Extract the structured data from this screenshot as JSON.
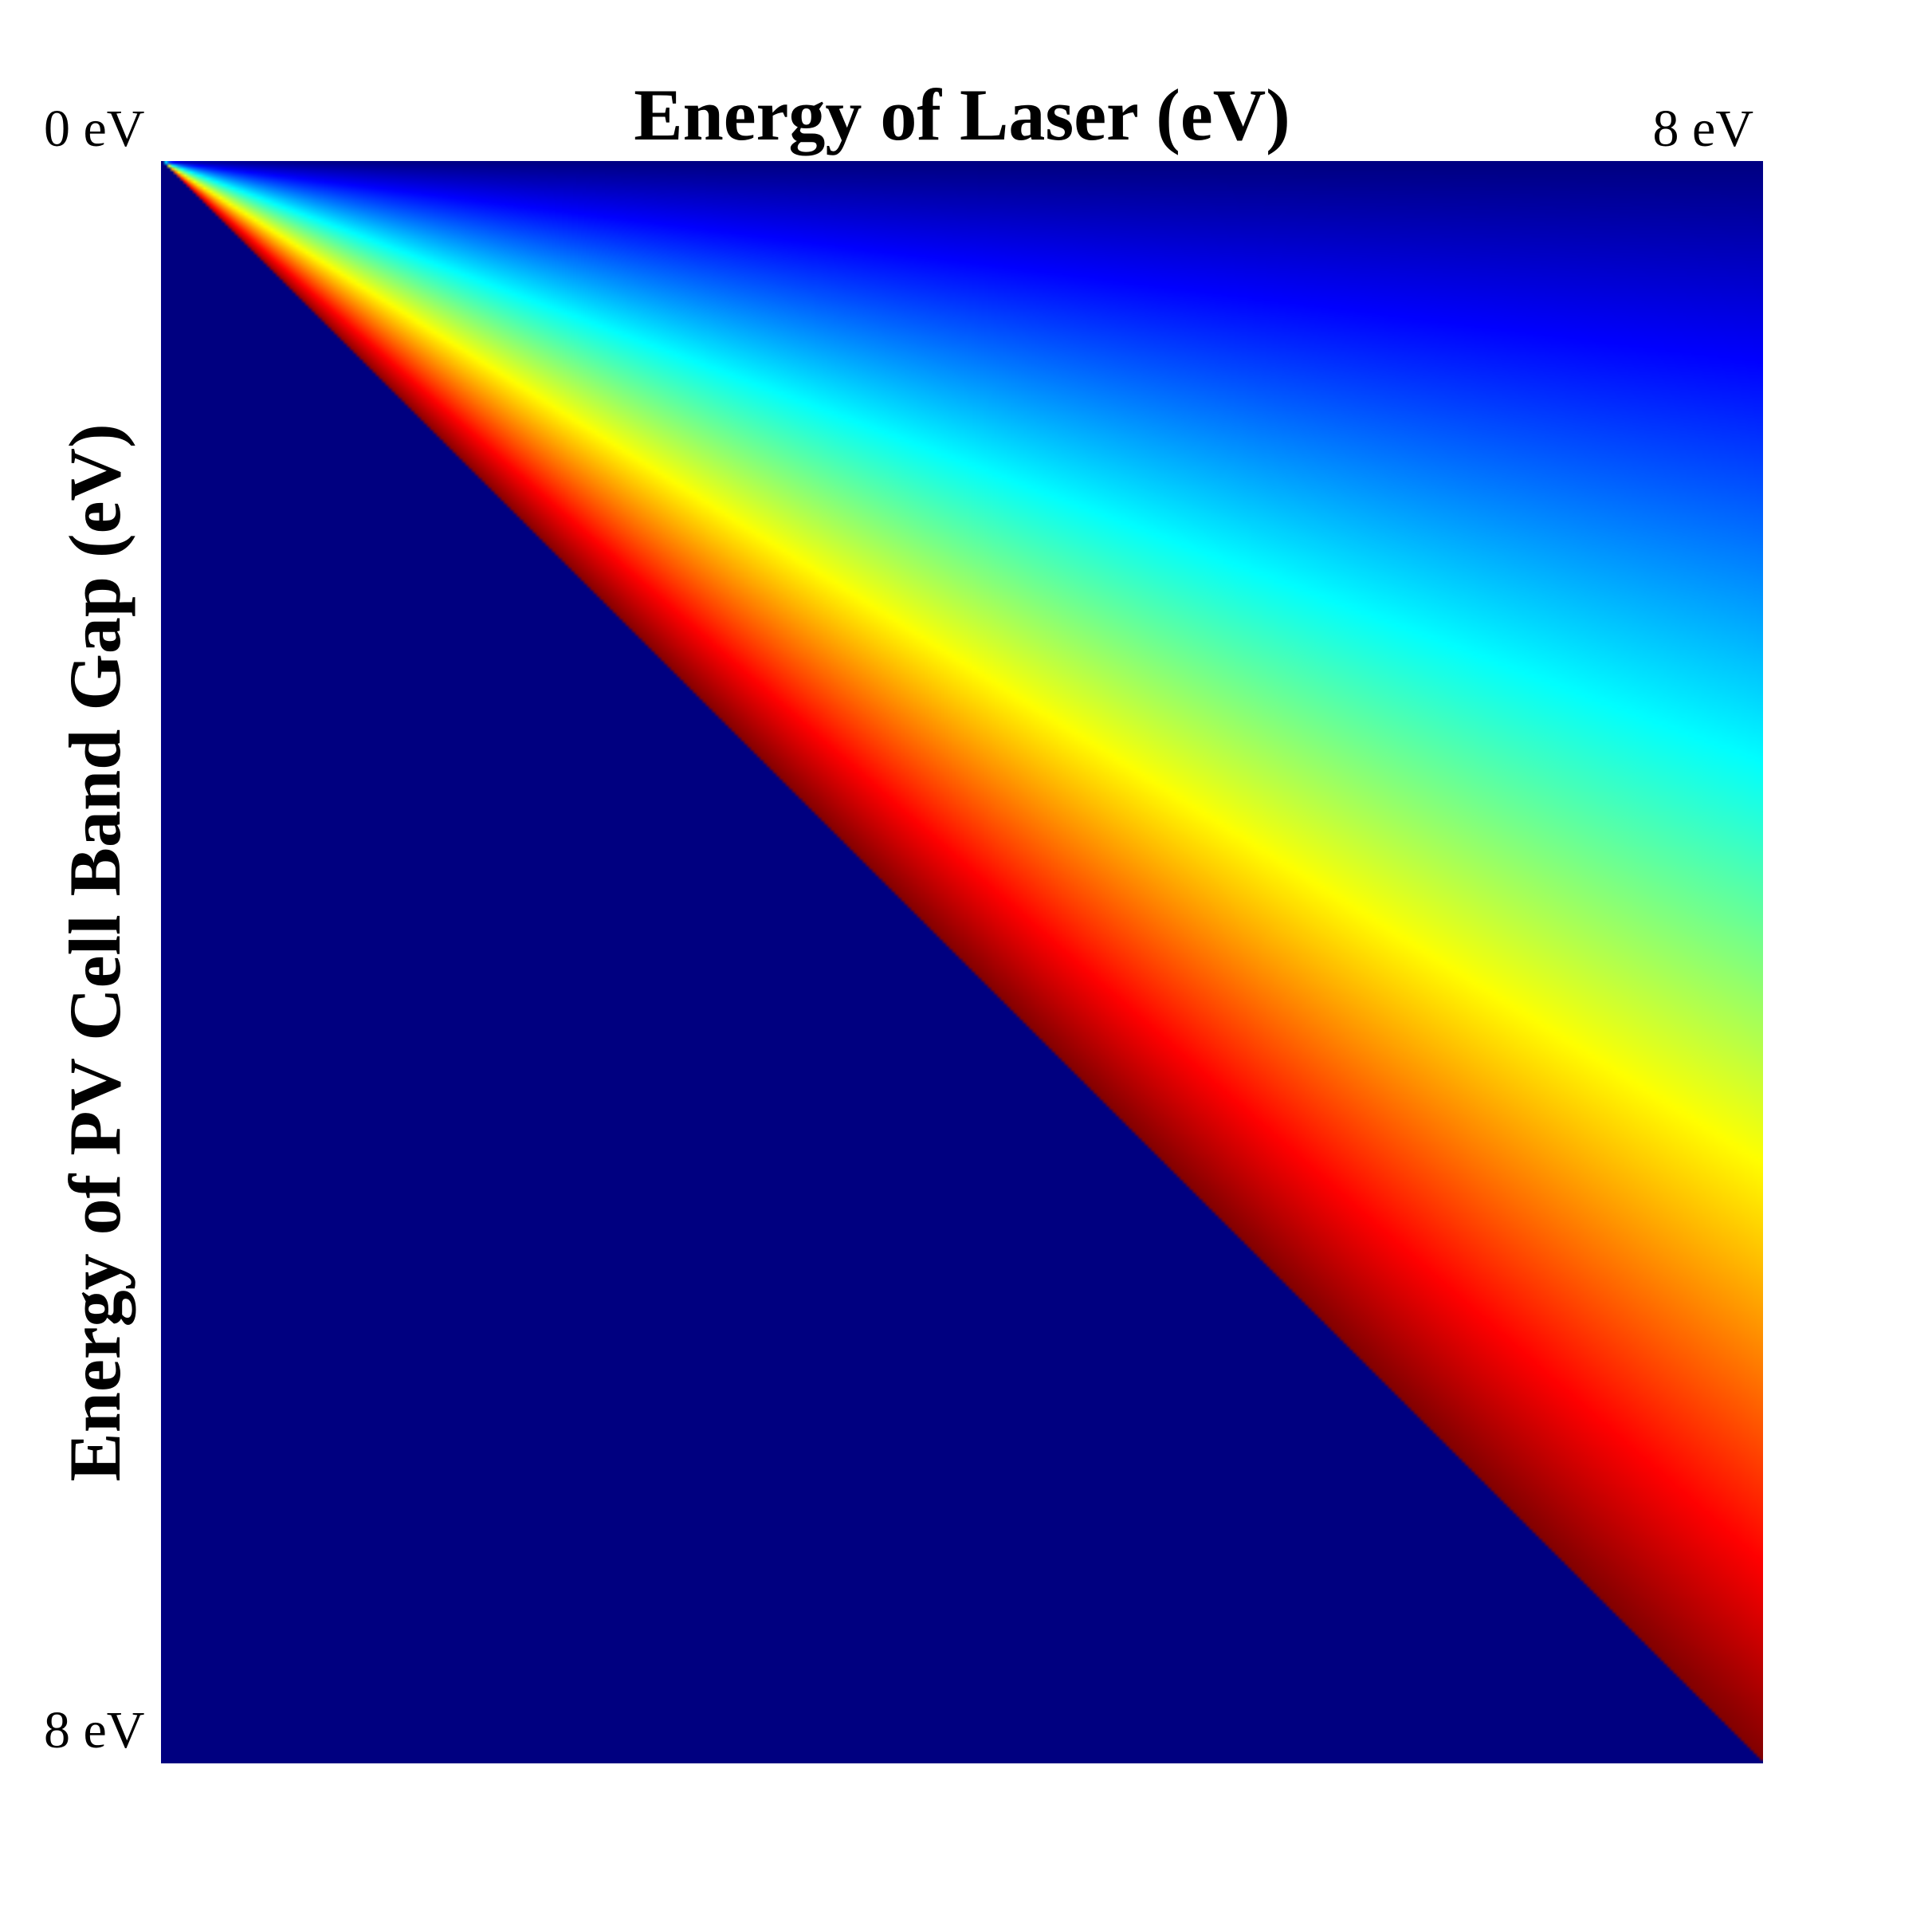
{
  "chart_data": {
    "type": "heatmap",
    "title": "Energy of Laser (eV)",
    "xlabel": "Energy of Laser (eV)",
    "ylabel": "Energy of PV Cell Band Gap (eV)",
    "x_range": [
      0,
      8
    ],
    "y_range": [
      0,
      8
    ],
    "y_inverted": true,
    "x_tick_labels": [
      "0 eV",
      "8 eV"
    ],
    "y_tick_labels": [
      "8 eV"
    ],
    "colormap": "jet",
    "background_color": "#000080",
    "region": "band gap < laser energy (upper-right triangle)",
    "value_function": "band_gap / laser_energy",
    "value_range": [
      0,
      1
    ],
    "grid": false,
    "legend": "none"
  }
}
